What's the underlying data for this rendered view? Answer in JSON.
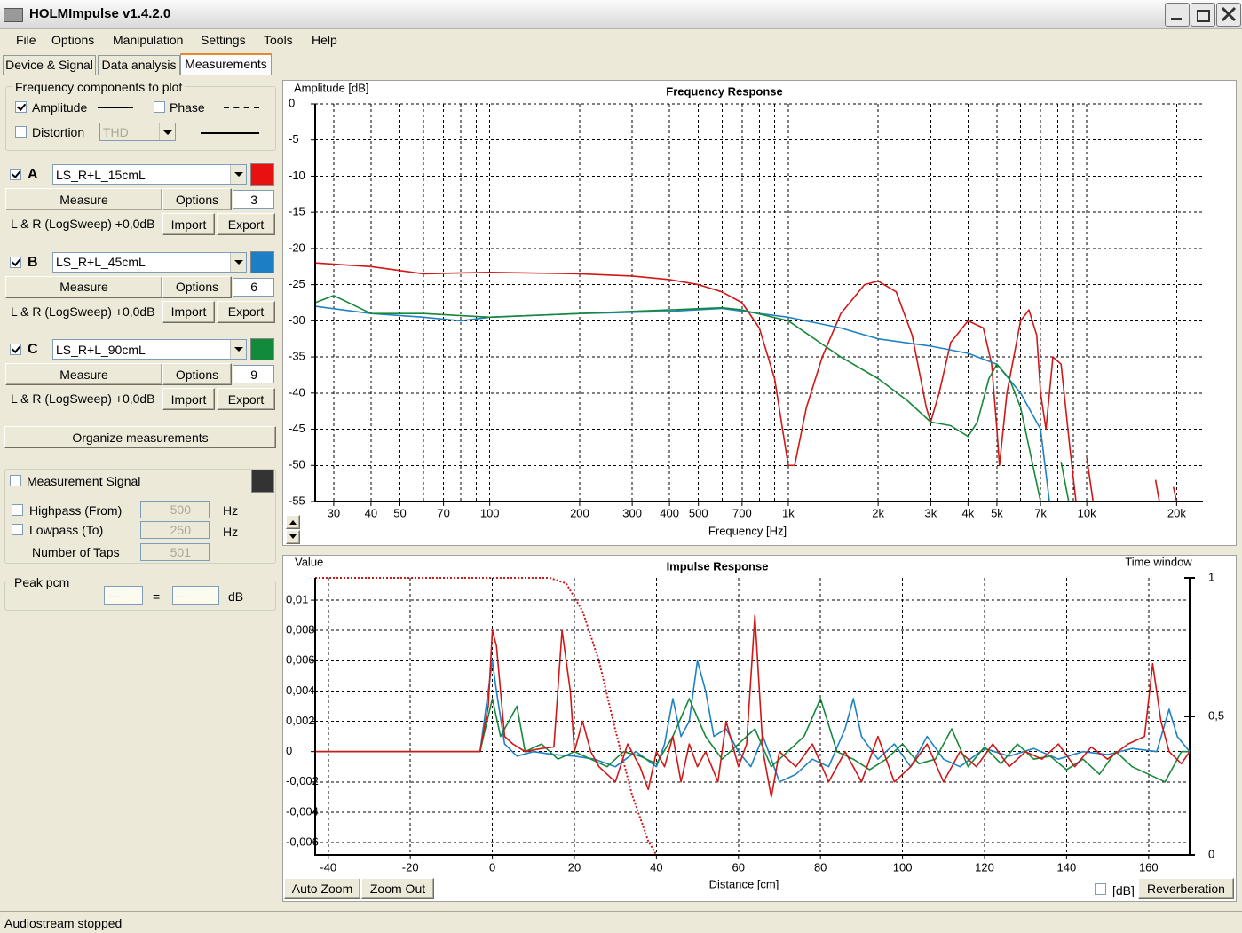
{
  "window": {
    "title": "HOLMImpulse  v1.4.2.0"
  },
  "menu": [
    "File",
    "Options",
    "Manipulation",
    "Settings",
    "Tools",
    "Help"
  ],
  "tabs": [
    "Device & Signal",
    "Data analysis",
    "Measurements"
  ],
  "frequency_components": {
    "title": "Frequency components to plot",
    "amplitude": "Amplitude",
    "phase": "Phase",
    "distortion": "Distortion",
    "distortion_type": "THD"
  },
  "measurements": [
    {
      "letter": "A",
      "name": "LS_R+L_15cmL",
      "color": "#e81010",
      "measure": "Measure",
      "options": "Options",
      "count": 3,
      "signal": "L & R (LogSweep) +0,0dB",
      "import": "Import",
      "export": "Export"
    },
    {
      "letter": "B",
      "name": "LS_R+L_45cmL",
      "color": "#1c7fc6",
      "measure": "Measure",
      "options": "Options",
      "count": 6,
      "signal": "L & R (LogSweep) +0,0dB",
      "import": "Import",
      "export": "Export"
    },
    {
      "letter": "C",
      "name": "LS_R+L_90cmL",
      "color": "#118a3c",
      "measure": "Measure",
      "options": "Options",
      "count": 9,
      "signal": "L & R (LogSweep) +0,0dB",
      "import": "Import",
      "export": "Export"
    }
  ],
  "organize": "Organize measurements",
  "measurement_signal": {
    "title": "Measurement Signal",
    "highpass": "Highpass (From)",
    "highpass_value": 500,
    "lowpass": "Lowpass (To)",
    "lowpass_value": 250,
    "taps": "Number of Taps",
    "taps_value": 501,
    "unit": "Hz"
  },
  "peak": {
    "title": "Peak pcm",
    "value1": "---",
    "equals": "=",
    "value2": "---",
    "unit": "dB"
  },
  "chart_data": [
    {
      "type": "line",
      "title": "Frequency Response",
      "y_label": "Amplitude [dB]",
      "x_label": "Frequency [Hz]",
      "xscale": "log",
      "grid": true,
      "xlim": [
        26,
        24500
      ],
      "ylim": [
        -55,
        0
      ],
      "xticks": [
        30,
        40,
        50,
        70,
        100,
        200,
        300,
        400,
        500,
        700,
        {
          "value": 1000,
          "label": "1k"
        },
        {
          "value": 2000,
          "label": "2k"
        },
        {
          "value": 3000,
          "label": "3k"
        },
        {
          "value": 4000,
          "label": "4k"
        },
        {
          "value": 5000,
          "label": "5k"
        },
        {
          "value": 7000,
          "label": "7k"
        },
        {
          "value": 10000,
          "label": "10k"
        },
        {
          "value": 20000,
          "label": "20k"
        }
      ],
      "xgrid_minor": [
        60,
        80,
        90,
        600,
        800,
        900,
        6000,
        8000,
        9000
      ],
      "yticks": [
        0,
        -5,
        -10,
        -15,
        -20,
        -25,
        -30,
        -35,
        -40,
        -45,
        -50,
        -55
      ],
      "series": [
        {
          "color": "#d01818",
          "x": [
            26,
            40,
            60,
            100,
            200,
            300,
            400,
            500,
            600,
            700,
            800,
            900,
            1000,
            1050,
            1150,
            1300,
            1500,
            1800,
            2000,
            2300,
            2600,
            2900,
            3000,
            3200,
            3500,
            4000,
            4500,
            4800,
            5000,
            5100,
            5400,
            6000,
            6400,
            6800,
            7000,
            7300,
            7700,
            8200,
            8800,
            9200,
            9700,
            10000,
            10500,
            16500,
            17000,
            17500,
            19000,
            19500,
            20000
          ],
          "values": [
            -22,
            -22.5,
            -23.5,
            -23.3,
            -23.5,
            -23.8,
            -24.3,
            -25,
            -26,
            -27.5,
            -31,
            -38,
            -50,
            -50,
            -42,
            -35,
            -29,
            -25,
            -24.5,
            -26,
            -32,
            -42,
            -44,
            -40,
            -33,
            -30,
            -31,
            -36,
            -45,
            -50,
            -40,
            -30,
            -28.5,
            -32,
            -40,
            -45,
            -35,
            -36,
            -48,
            -55,
            null,
            -49,
            -55,
            null,
            -52,
            -55,
            null,
            -53,
            -55
          ]
        },
        {
          "color": "#1f82c2",
          "x": [
            26,
            40,
            60,
            80,
            100,
            200,
            400,
            600,
            800,
            1000,
            1500,
            2000,
            3000,
            4000,
            5000,
            6000,
            7000,
            7500
          ],
          "values": [
            -28,
            -29,
            -29.5,
            -30,
            -29.5,
            -29,
            -28.7,
            -28.3,
            -29,
            -29.5,
            -31,
            -32.5,
            -33.5,
            -34.5,
            -36,
            -40,
            -45,
            -55
          ]
        },
        {
          "color": "#17883a",
          "x": [
            26,
            30,
            40,
            60,
            100,
            200,
            400,
            600,
            700,
            1000,
            1500,
            2000,
            2500,
            3000,
            3500,
            4000,
            4300,
            4700,
            5000,
            5500,
            6000,
            7000,
            7800,
            8200,
            8700
          ],
          "values": [
            -27.5,
            -26.5,
            -29,
            -29,
            -29.5,
            -29,
            -28.5,
            -28.2,
            -28.5,
            -30,
            -35,
            -38,
            -41,
            -44,
            -44.5,
            -46,
            -44,
            -38,
            -36,
            -38,
            -42,
            -55,
            null,
            -49.5,
            -55
          ]
        }
      ]
    },
    {
      "type": "line",
      "title": "Impulse Response",
      "y_label": "Value",
      "y2_label": "Time window",
      "x_label": "Distance [cm]",
      "grid": true,
      "xlim": [
        -43.2,
        170
      ],
      "ylim": [
        -0.00682,
        0.01147
      ],
      "y2lim": [
        0,
        1
      ],
      "xticks": [
        -40,
        -20,
        0,
        20,
        40,
        60,
        80,
        100,
        120,
        140,
        160
      ],
      "yticks": [
        {
          "value": -0.006,
          "label": "-0,006"
        },
        {
          "value": -0.004,
          "label": "-0,004"
        },
        {
          "value": -0.002,
          "label": "-0,002"
        },
        0,
        {
          "value": 0.002,
          "label": "0,002"
        },
        {
          "value": 0.004,
          "label": "0,004"
        },
        {
          "value": 0.006,
          "label": "0,006"
        },
        {
          "value": 0.008,
          "label": "0,008"
        },
        {
          "value": 0.01,
          "label": "0,01"
        }
      ],
      "y2ticks": [
        0,
        {
          "value": 0.5,
          "label": "0,5"
        },
        1
      ],
      "series": [
        {
          "color": "#1f82c2",
          "x": [
            -43,
            -3,
            0,
            1,
            3,
            6,
            10,
            15,
            20,
            25,
            30,
            35,
            40,
            42,
            44,
            46,
            48,
            50,
            52,
            54,
            57,
            60,
            63,
            66,
            70,
            74,
            78,
            82,
            86,
            88,
            90,
            94,
            98,
            102,
            106,
            110,
            114,
            120,
            126,
            132,
            138,
            144,
            150,
            156,
            162,
            165,
            167,
            170
          ],
          "values": [
            0,
            0,
            0.006,
            0.004,
            0.0005,
            -0.0003,
            0,
            -0.0002,
            -0.0003,
            -0.0005,
            -0.001,
            0,
            -0.001,
            0.0005,
            0.0035,
            0.001,
            0.002,
            0.006,
            0.004,
            0.001,
            0.0015,
            0,
            -0.001,
            0.001,
            -0.002,
            -0.0015,
            -0.0005,
            -0.001,
            0.0015,
            0.0035,
            0.001,
            -0.0005,
            0.0005,
            -0.001,
            0.001,
            -0.0005,
            -0.001,
            0.0002,
            -0.0003,
            0.0002,
            -0.0005,
            0,
            -0.0002,
            0.0002,
            0,
            0.0028,
            0.001,
            0
          ]
        },
        {
          "color": "#17883a",
          "x": [
            -43,
            -3,
            0,
            2,
            4,
            6,
            8,
            12,
            16,
            20,
            24,
            28,
            32,
            36,
            40,
            44,
            48,
            52,
            56,
            60,
            64,
            68,
            72,
            76,
            80,
            84,
            88,
            92,
            96,
            100,
            104,
            108,
            112,
            116,
            120,
            124,
            128,
            132,
            136,
            140,
            144,
            148,
            152,
            156,
            160,
            164,
            168,
            170
          ],
          "values": [
            0,
            0,
            0.0035,
            0.001,
            0.002,
            0.003,
            0,
            0.0005,
            -0.0005,
            0,
            -0.0005,
            -0.001,
            0,
            -0.0003,
            -0.0008,
            0.001,
            0.0035,
            0.001,
            -0.0005,
            0.0005,
            0.0015,
            -0.001,
            0,
            0.001,
            0.0035,
            0,
            -0.0005,
            -0.0012,
            -0.0005,
            0.0005,
            -0.0008,
            -0.0005,
            0.0015,
            -0.001,
            0.0003,
            -0.0008,
            0.0005,
            -0.0005,
            -0.0003,
            -0.0012,
            -0.0005,
            -0.0015,
            0,
            -0.001,
            -0.0015,
            -0.002,
            0,
            0
          ]
        },
        {
          "color": "#d01818",
          "x": [
            -43,
            -3,
            -1,
            0,
            1,
            3,
            5,
            8,
            12,
            15,
            17,
            19,
            20,
            22,
            24,
            26,
            28,
            30,
            33,
            36,
            38,
            40,
            42,
            44,
            46,
            48,
            50,
            52,
            55,
            57,
            60,
            62,
            64,
            66,
            68,
            70,
            74,
            78,
            82,
            86,
            90,
            94,
            98,
            102,
            106,
            110,
            114,
            118,
            122,
            126,
            130,
            134,
            138,
            142,
            146,
            150,
            155,
            159,
            161,
            163,
            165,
            168,
            170
          ],
          "values": [
            0,
            0,
            0.003,
            0.008,
            0.007,
            0.001,
            0.0005,
            0,
            0.0002,
            0.0003,
            0.008,
            0.004,
            0,
            0.002,
            0,
            -0.001,
            -0.0015,
            -0.002,
            0.0005,
            -0.001,
            -0.0025,
            0,
            -0.001,
            0.001,
            -0.002,
            0.0005,
            -0.001,
            0,
            -0.002,
            0.002,
            -0.001,
            0.0005,
            0.009,
            0,
            -0.003,
            0,
            -0.001,
            0.0005,
            -0.002,
            0,
            -0.002,
            0.001,
            -0.002,
            -0.001,
            0.0005,
            -0.002,
            0,
            -0.001,
            0.0005,
            -0.001,
            0,
            -0.0005,
            0.0005,
            -0.001,
            0.0003,
            -0.0005,
            0.0005,
            0.001,
            0.0058,
            0.002,
            0,
            -0.0008,
            0
          ]
        },
        {
          "color": "#d01818",
          "axis": "y2",
          "linestyle": "dotted",
          "x": [
            -43.2,
            14,
            18,
            22,
            26,
            30,
            34,
            38,
            40,
            170
          ],
          "values": [
            1,
            1,
            0.98,
            0.88,
            0.7,
            0.45,
            0.22,
            0.05,
            0,
            0
          ]
        }
      ]
    }
  ],
  "impulse_controls": {
    "auto_zoom": "Auto Zoom",
    "zoom_out": "Zoom Out",
    "db": "[dB]",
    "reverberation": "Reverberation"
  },
  "status": "Audiostream stopped"
}
